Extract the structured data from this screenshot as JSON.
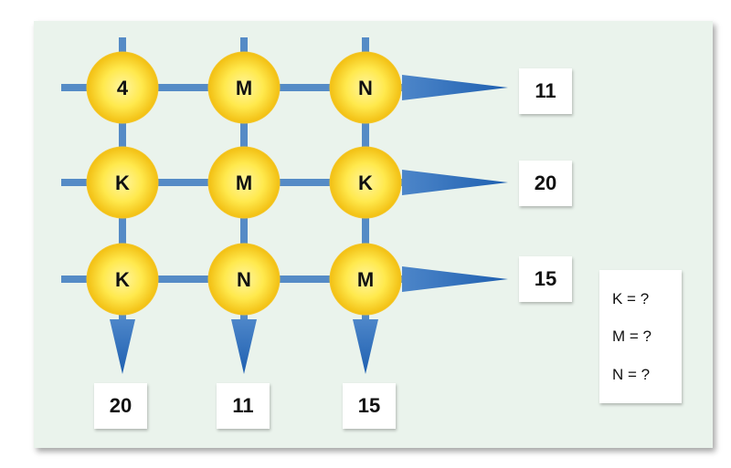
{
  "grid": {
    "rows": [
      [
        "4",
        "M",
        "N"
      ],
      [
        "K",
        "M",
        "K"
      ],
      [
        "K",
        "N",
        "M"
      ]
    ]
  },
  "row_results": [
    "11",
    "20",
    "15"
  ],
  "column_results": [
    "20",
    "11",
    "15"
  ],
  "questions": [
    "K = ?",
    "M = ?",
    "N = ?"
  ],
  "colors": {
    "panel": "#eaf3ec",
    "line": "#2a6db5",
    "node_center": "#fff06a",
    "node_edge": "#f2c318"
  }
}
